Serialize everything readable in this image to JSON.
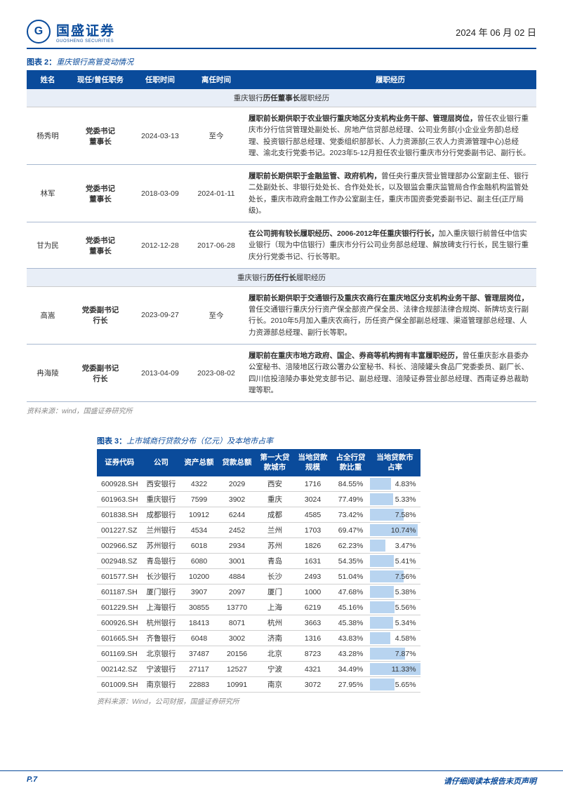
{
  "header": {
    "logo_cn": "国盛证券",
    "logo_en": "GUOSHENG SECURITIES",
    "logo_glyph": "G",
    "date": "2024 年 06 月 02 日"
  },
  "figure2": {
    "title_prefix": "图表 2：",
    "title": "重庆银行高管变动情况",
    "columns": [
      "姓名",
      "现任/曾任职务",
      "任职时间",
      "离任时间",
      "履职经历"
    ],
    "section1_prefix": "重庆银行",
    "section1_bold": "历任董事长",
    "section1_suffix": "履职经历",
    "section2_prefix": "重庆银行",
    "section2_bold": "历任行长",
    "section2_suffix": "履职经历",
    "rows_s1": [
      {
        "name": "杨秀明",
        "pos": "党委书记\n董事长",
        "start": "2024-03-13",
        "end": "至今",
        "desc_bold": "履职前长期供职于农业银行重庆地区分支机构业务干部、管理层岗位，",
        "desc_rest": "曾任农业银行重庆市分行信贷管理处副处长、房地产信贷部总经理、公司业务部(小企业业务部)总经理、投资银行部总经理、党委组织部部长、人力资源部(三农人力资源管理中心)总经理、渝北支行党委书记。2023年5-12月担任农业银行重庆市分行党委副书记、副行长。"
      },
      {
        "name": "林军",
        "pos": "党委书记\n董事长",
        "start": "2018-03-09",
        "end": "2024-01-11",
        "desc_bold": "履职前长期供职于金融监管、政府机构，",
        "desc_rest": "曾任央行重庆营业管理部办公室副主任、银行二处副处长、非银行处处长、合作处处长，以及银监会重庆监管局合作金融机构监管处处长，重庆市政府金融工作办公室副主任，重庆市国资委党委副书记、副主任(正厅局级)。"
      },
      {
        "name": "甘为民",
        "pos": "党委书记\n董事长",
        "start": "2012-12-28",
        "end": "2017-06-28",
        "desc_bold": "在公司拥有较长履职经历、2006-2012年任重庆银行行长，",
        "desc_rest": "加入重庆银行前曾任中信实业银行（现为中信银行）重庆市分行公司业务部总经理、解放碑支行行长，民生银行重庆分行党委书记、行长等职。"
      }
    ],
    "rows_s2": [
      {
        "name": "高嵩",
        "pos": "党委副书记\n行长",
        "start": "2023-09-27",
        "end": "至今",
        "desc_bold": "履职前长期供职于交通银行及重庆农商行在重庆地区分支机构业务干部、管理层岗位，",
        "desc_rest": "曾任交通银行重庆分行资产保全部资产保全员、法律合规部法律合规岗、新牌坊支行副行长。2010年5月加入重庆农商行，历任资产保全部副总经理、渠道管理部总经理、人力资源部总经理、副行长等职。"
      },
      {
        "name": "冉海陵",
        "pos": "党委副书记\n行长",
        "start": "2013-04-09",
        "end": "2023-08-02",
        "desc_bold": "履职前在重庆市地方政府、国企、券商等机构拥有丰富履职经历，",
        "desc_rest": "曾任重庆彭水县委办公室秘书、涪陵地区行政公署办公室秘书、科长、涪陵罐头食品厂党委委员、副厂长、四川信投涪陵办事处党支部书记、副总经理、涪陵证券营业部总经理、西南证券总裁助理等职。"
      }
    ],
    "source": "资料来源：wind，国盛证券研究所"
  },
  "figure3": {
    "title_prefix": "图表 3：",
    "title": "上市城商行贷款分布（亿元）及本地市占率",
    "columns": [
      "证券代码",
      "公司",
      "资产总额",
      "贷款总额",
      "第一大贷款城市",
      "当地贷款规模",
      "占全行贷款比重",
      "当地贷款市占率"
    ],
    "max_bar": 11.33,
    "rows": [
      {
        "code": "600928.SH",
        "co": "西安银行",
        "assets": "4322",
        "loans": "2029",
        "city": "西安",
        "local": "1716",
        "pct": "84.55%",
        "share": 4.83,
        "share_s": "4.83%"
      },
      {
        "code": "601963.SH",
        "co": "重庆银行",
        "assets": "7599",
        "loans": "3902",
        "city": "重庆",
        "local": "3024",
        "pct": "77.49%",
        "share": 5.33,
        "share_s": "5.33%"
      },
      {
        "code": "601838.SH",
        "co": "成都银行",
        "assets": "10912",
        "loans": "6244",
        "city": "成都",
        "local": "4585",
        "pct": "73.42%",
        "share": 7.58,
        "share_s": "7.58%"
      },
      {
        "code": "001227.SZ",
        "co": "兰州银行",
        "assets": "4534",
        "loans": "2452",
        "city": "兰州",
        "local": "1703",
        "pct": "69.47%",
        "share": 10.74,
        "share_s": "10.74%"
      },
      {
        "code": "002966.SZ",
        "co": "苏州银行",
        "assets": "6018",
        "loans": "2934",
        "city": "苏州",
        "local": "1826",
        "pct": "62.23%",
        "share": 3.47,
        "share_s": "3.47%"
      },
      {
        "code": "002948.SZ",
        "co": "青岛银行",
        "assets": "6080",
        "loans": "3001",
        "city": "青岛",
        "local": "1631",
        "pct": "54.35%",
        "share": 5.41,
        "share_s": "5.41%"
      },
      {
        "code": "601577.SH",
        "co": "长沙银行",
        "assets": "10200",
        "loans": "4884",
        "city": "长沙",
        "local": "2493",
        "pct": "51.04%",
        "share": 7.56,
        "share_s": "7.56%"
      },
      {
        "code": "601187.SH",
        "co": "厦门银行",
        "assets": "3907",
        "loans": "2097",
        "city": "厦门",
        "local": "1000",
        "pct": "47.68%",
        "share": 5.38,
        "share_s": "5.38%"
      },
      {
        "code": "601229.SH",
        "co": "上海银行",
        "assets": "30855",
        "loans": "13770",
        "city": "上海",
        "local": "6219",
        "pct": "45.16%",
        "share": 5.56,
        "share_s": "5.56%"
      },
      {
        "code": "600926.SH",
        "co": "杭州银行",
        "assets": "18413",
        "loans": "8071",
        "city": "杭州",
        "local": "3663",
        "pct": "45.38%",
        "share": 5.34,
        "share_s": "5.34%"
      },
      {
        "code": "601665.SH",
        "co": "齐鲁银行",
        "assets": "6048",
        "loans": "3002",
        "city": "济南",
        "local": "1316",
        "pct": "43.83%",
        "share": 4.58,
        "share_s": "4.58%"
      },
      {
        "code": "601169.SH",
        "co": "北京银行",
        "assets": "37487",
        "loans": "20156",
        "city": "北京",
        "local": "8723",
        "pct": "43.28%",
        "share": 7.87,
        "share_s": "7.87%"
      },
      {
        "code": "002142.SZ",
        "co": "宁波银行",
        "assets": "27117",
        "loans": "12527",
        "city": "宁波",
        "local": "4321",
        "pct": "34.49%",
        "share": 11.33,
        "share_s": "11.33%"
      },
      {
        "code": "601009.SH",
        "co": "南京银行",
        "assets": "22883",
        "loans": "10991",
        "city": "南京",
        "local": "3072",
        "pct": "27.95%",
        "share": 5.65,
        "share_s": "5.65%"
      }
    ],
    "source": "资料来源：Wind，公司财报，国盛证券研究所"
  },
  "footer": {
    "page": "P.7",
    "disclaimer": "请仔细阅读本报告末页声明"
  }
}
